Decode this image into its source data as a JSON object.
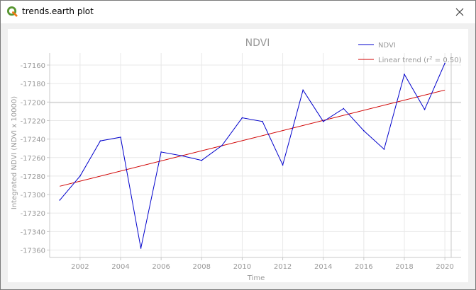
{
  "window": {
    "title": "trends.earth plot",
    "icon": "qgis-icon",
    "close_icon": "close-icon"
  },
  "chart_data": {
    "type": "line",
    "title": "NDVI",
    "xlabel": "Time",
    "ylabel": "Integrated NDVI (NDVI x 10000)",
    "xlim": [
      2000.5,
      2020.8
    ],
    "ylim": [
      -17368,
      -17147
    ],
    "x_ticks": [
      2002,
      2004,
      2006,
      2008,
      2010,
      2012,
      2014,
      2016,
      2018,
      2020
    ],
    "y_ticks": [
      -17360,
      -17340,
      -17320,
      -17300,
      -17280,
      -17260,
      -17240,
      -17220,
      -17200,
      -17180,
      -17160
    ],
    "grid": true,
    "legend_position": "top-right",
    "series": [
      {
        "name": "NDVI",
        "color": "#0000cc",
        "x": [
          2001,
          2002,
          2003,
          2004,
          2005,
          2006,
          2007,
          2008,
          2009,
          2010,
          2011,
          2012,
          2013,
          2014,
          2015,
          2016,
          2017,
          2018,
          2019,
          2020
        ],
        "y": [
          -17306,
          -17280,
          -17242,
          -17238,
          -17358,
          -17254,
          -17258,
          -17263,
          -17247,
          -17217,
          -17221,
          -17268,
          -17187,
          -17221,
          -17207,
          -17231,
          -17251,
          -17170,
          -17208,
          -17158
        ]
      }
    ],
    "trend": {
      "name_prefix": "Linear trend (r",
      "name_sup": "2",
      "name_suffix": " = 0.50)",
      "color": "#d00000",
      "x": [
        2001,
        2020
      ],
      "y": [
        -17291,
        -17187
      ]
    }
  }
}
